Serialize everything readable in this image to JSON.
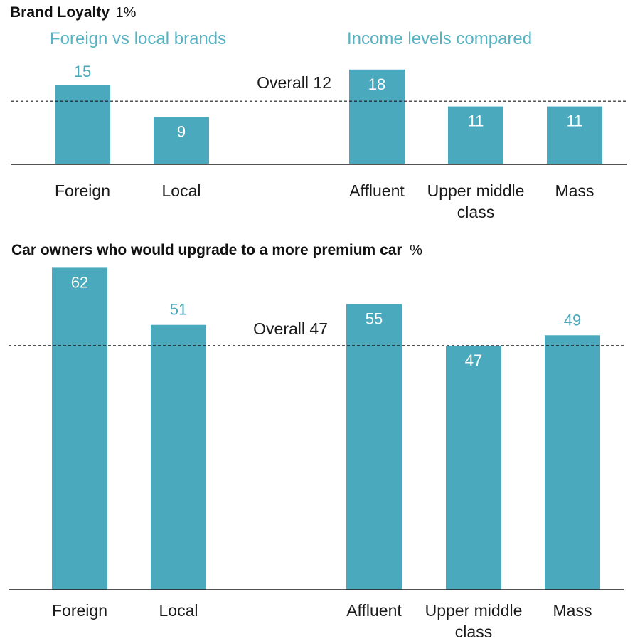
{
  "colors": {
    "bar": "#4aa9bc",
    "label_outside": "#4aa9bc",
    "label_inside": "#ffffff",
    "group_title": "#55b3c2",
    "baseline": "#1a1a1a",
    "reference": "#1a1a1a"
  },
  "chart_data": [
    {
      "type": "bar",
      "title": "Brand Loyalty",
      "unit": "1%",
      "groups": [
        {
          "label": "Foreign vs local brands",
          "categories": [
            "Foreign",
            "Local"
          ],
          "values": [
            15,
            9
          ]
        },
        {
          "label": "Income levels compared",
          "categories": [
            "Affluent",
            "Upper middle class",
            "Mass"
          ],
          "values": [
            18,
            11,
            11
          ]
        }
      ],
      "category_lines": [
        [
          "Foreign"
        ],
        [
          "Local"
        ],
        [
          "Affluent"
        ],
        [
          "Upper middle",
          "class"
        ],
        [
          "Mass"
        ]
      ],
      "reference": {
        "label": "Overall 12",
        "value": 12
      },
      "ylim": [
        0,
        20
      ],
      "value_labels": [
        "15",
        "9",
        "18",
        "11",
        "11"
      ],
      "value_label_inside": [
        false,
        true,
        true,
        true,
        true
      ],
      "xlabel": "",
      "ylabel": "",
      "grid": false
    },
    {
      "type": "bar",
      "title": "Car owners who would upgrade to a more premium car",
      "unit": "%",
      "categories": [
        "Foreign",
        "Local",
        "Affluent",
        "Upper middle class",
        "Mass"
      ],
      "values": [
        62,
        51,
        55,
        47,
        49
      ],
      "category_lines": [
        [
          "Foreign"
        ],
        [
          "Local"
        ],
        [
          "Affluent"
        ],
        [
          "Upper middle",
          "class"
        ],
        [
          "Mass"
        ]
      ],
      "reference": {
        "label": "Overall 47",
        "value": 47
      },
      "ylim": [
        0,
        65
      ],
      "value_labels": [
        "62",
        "51",
        "55",
        "47",
        "49"
      ],
      "value_label_inside": [
        true,
        false,
        true,
        true,
        false
      ],
      "xlabel": "",
      "ylabel": "",
      "grid": false
    }
  ]
}
